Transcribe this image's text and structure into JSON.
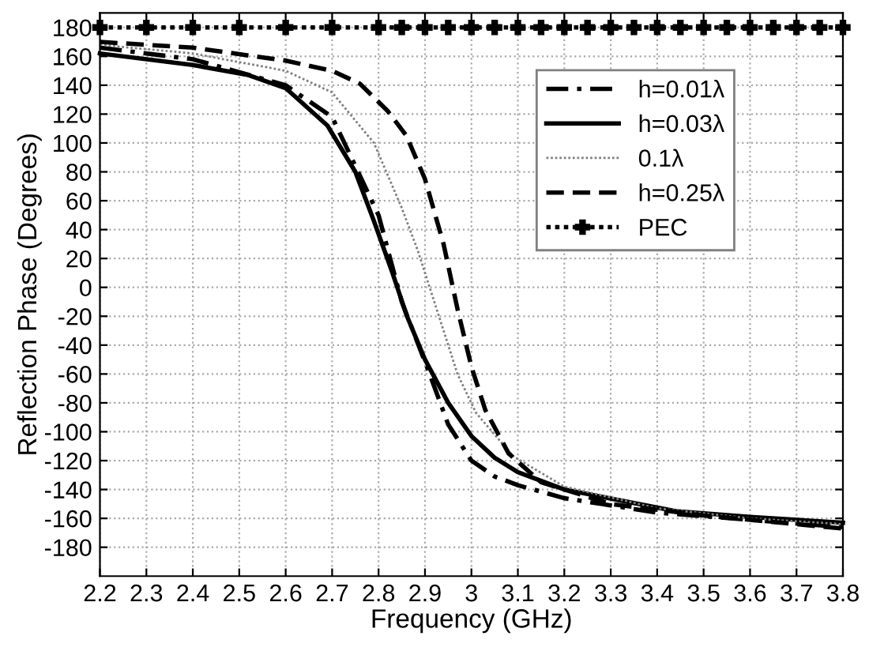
{
  "chart_data": {
    "type": "line",
    "xlabel": "Frequency (GHz)",
    "ylabel": "Reflection Phase (Degrees)",
    "xlim": [
      2.2,
      3.8
    ],
    "xticks": [
      2.2,
      2.3,
      2.4,
      2.5,
      2.6,
      2.7,
      2.8,
      2.9,
      3,
      3.1,
      3.2,
      3.3,
      3.4,
      3.5,
      3.6,
      3.7,
      3.8
    ],
    "ylim": [
      -200,
      190
    ],
    "yticks": [
      -180,
      -160,
      -140,
      -120,
      -100,
      -80,
      -60,
      -40,
      -20,
      0,
      20,
      40,
      60,
      80,
      100,
      120,
      140,
      160,
      180
    ],
    "grid": true,
    "legend": "top right",
    "series": [
      {
        "name": "h=0.01λ",
        "color": "#000000",
        "line_style": "dashdot",
        "marker": "none",
        "x": [
          2.2,
          2.4,
          2.6,
          2.7,
          2.8,
          2.85,
          2.91,
          2.95,
          3.0,
          3.05,
          3.1,
          3.2,
          3.4,
          3.6,
          3.8
        ],
        "values": [
          166,
          158,
          140,
          118,
          50,
          -10,
          -60,
          -95,
          -120,
          -131,
          -137,
          -146,
          -156,
          -161,
          -166
        ]
      },
      {
        "name": "h=0.03λ",
        "color": "#000000",
        "line_style": "solid",
        "marker": "none",
        "x": [
          2.2,
          2.4,
          2.52,
          2.6,
          2.69,
          2.75,
          2.79,
          2.83,
          2.86,
          2.9,
          2.95,
          3.0,
          3.05,
          3.1,
          3.2,
          3.44,
          3.6,
          3.8
        ],
        "values": [
          162,
          154,
          147,
          138,
          112,
          80,
          46,
          10,
          -19,
          -50,
          -80,
          -103,
          -118,
          -128,
          -140,
          -155,
          -159,
          -163
        ]
      },
      {
        "name": "0.1λ",
        "color": "#808080",
        "line_style": "dotted",
        "marker": "none",
        "x": [
          2.2,
          2.4,
          2.6,
          2.7,
          2.79,
          2.85,
          2.885,
          2.93,
          2.97,
          3.01,
          3.09,
          3.2,
          3.4,
          3.6,
          3.8
        ],
        "values": [
          168,
          162,
          150,
          135,
          100,
          55,
          25,
          -20,
          -60,
          -87,
          -117,
          -138,
          -153,
          -160,
          -164
        ]
      },
      {
        "name": "h=0.25λ",
        "color": "#000000",
        "line_style": "dashed",
        "marker": "none",
        "x": [
          2.2,
          2.4,
          2.6,
          2.7,
          2.76,
          2.82,
          2.86,
          2.9,
          2.94,
          2.97,
          3.0,
          3.03,
          3.08,
          3.15,
          3.3,
          3.5,
          3.8
        ],
        "values": [
          170,
          166,
          157,
          150,
          141,
          122,
          105,
          75,
          30,
          -15,
          -55,
          -85,
          -115,
          -135,
          -150,
          -158,
          -167
        ]
      },
      {
        "name": "PEC",
        "color": "#000000",
        "line_style": "dotted",
        "marker": "cross",
        "x": [
          2.2,
          2.3,
          2.4,
          2.5,
          2.6,
          2.7,
          2.8,
          2.85,
          2.9,
          2.95,
          3.0,
          3.05,
          3.1,
          3.15,
          3.2,
          3.25,
          3.3,
          3.35,
          3.4,
          3.45,
          3.5,
          3.55,
          3.6,
          3.65,
          3.7,
          3.75,
          3.8
        ],
        "values": [
          180,
          180,
          180,
          180,
          180,
          180,
          180,
          180,
          180,
          180,
          180,
          180,
          180,
          180,
          180,
          180,
          180,
          180,
          180,
          180,
          180,
          180,
          180,
          180,
          180,
          180,
          180
        ]
      }
    ]
  }
}
